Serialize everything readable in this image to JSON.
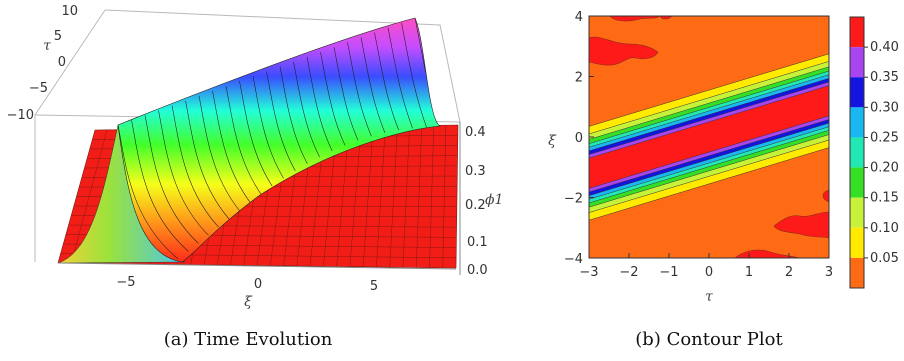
{
  "panel_a": {
    "caption": "(a) Time Evolution",
    "chart_data": {
      "type": "surface",
      "title": "",
      "xlabel": "ξ",
      "ylabel": "τ",
      "zlabel": "ϕ1",
      "x_ticks": [
        "−5",
        "0",
        "5"
      ],
      "y_ticks": [
        "10",
        "5",
        "0",
        "−5",
        "−10"
      ],
      "z_ticks": [
        "0.0",
        "0.1",
        "0.2",
        "0.3",
        "0.4"
      ],
      "xlim": [
        -8,
        8
      ],
      "ylim": [
        -10,
        10
      ],
      "zlim": [
        0,
        0.45
      ],
      "peak": 0.44,
      "colormap": "hue rainbow (red at low, through yellow, green, cyan, blue, magenta at peak)"
    }
  },
  "panel_b": {
    "caption": "(b) Contour Plot",
    "chart_data": {
      "type": "contour",
      "title": "",
      "xlabel": "τ",
      "ylabel": "ξ",
      "xlim": [
        -3,
        3
      ],
      "ylim": [
        -4,
        4
      ],
      "x_ticks": [
        "−3",
        "−2",
        "−1",
        "0",
        "1",
        "2",
        "3"
      ],
      "y_ticks": [
        "4",
        "2",
        "0",
        "−2",
        "−4"
      ],
      "band_slope": 0.4,
      "levels": [
        0.05,
        0.1,
        0.15,
        0.2,
        0.25,
        0.3,
        0.35,
        0.4
      ],
      "colorbar_labels": [
        "0.40",
        "0.35",
        "0.30",
        "0.25",
        "0.20",
        "0.15",
        "0.10",
        "0.05"
      ],
      "colors": [
        "#ff6a14",
        "#ffea00",
        "#c8f23a",
        "#35df26",
        "#22e8b4",
        "#19b8f2",
        "#1414e0",
        "#a845f0",
        "#ff1a1a"
      ]
    }
  }
}
